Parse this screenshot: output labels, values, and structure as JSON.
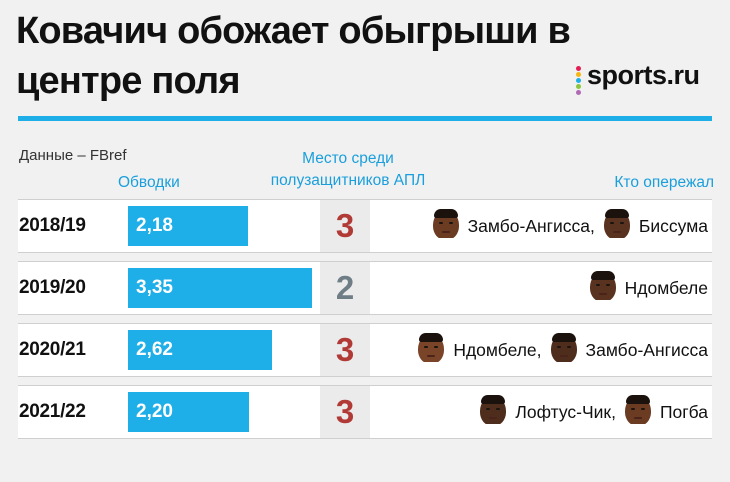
{
  "title": "Ковачич обожает обыгрыши в центре поля",
  "brand": {
    "name": "sports.ru",
    "dot_colors": [
      "#e41e54",
      "#f6b511",
      "#1eaee8",
      "#8bc53f",
      "#b06ab3"
    ]
  },
  "source": "Данные – FBref",
  "columns": {
    "dribbles": "Обводки",
    "rank": "Место среди полузащитников АПЛ",
    "who": "Кто опережал"
  },
  "colors": {
    "accent": "#1eaee8",
    "rank_red": "#b13a36",
    "rank_grey": "#6f7d86"
  },
  "chart_data": {
    "type": "bar",
    "orientation": "horizontal",
    "categories": [
      "2018/19",
      "2019/20",
      "2020/21",
      "2021/22"
    ],
    "values": [
      2.18,
      3.35,
      2.62,
      2.2
    ],
    "value_labels": [
      "2,18",
      "3,35",
      "2,62",
      "2,20"
    ],
    "title": "Ковачич обожает обыгрыши в центре поля",
    "ylabel": "Обводки",
    "xlim": [
      0,
      3.35
    ]
  },
  "rows": [
    {
      "season": "2018/19",
      "label": "2,18",
      "rank": "3",
      "rank_color": "red",
      "players": [
        {
          "name": "Замбо-Ангисса",
          "icon": "player-face-icon",
          "sep": ","
        },
        {
          "name": "Биссума",
          "icon": "player-face-icon",
          "sep": ""
        }
      ]
    },
    {
      "season": "2019/20",
      "label": "3,35",
      "rank": "2",
      "rank_color": "grey",
      "players": [
        {
          "name": "Ндомбеле",
          "icon": "player-face-icon",
          "sep": ""
        }
      ]
    },
    {
      "season": "2020/21",
      "label": "2,62",
      "rank": "3",
      "rank_color": "red",
      "players": [
        {
          "name": "Ндомбеле",
          "icon": "player-face-icon",
          "sep": ","
        },
        {
          "name": "Замбо-Ангисса",
          "icon": "player-face-icon",
          "sep": ""
        }
      ]
    },
    {
      "season": "2021/22",
      "label": "2,20",
      "rank": "3",
      "rank_color": "red",
      "players": [
        {
          "name": "Лофтус-Чик",
          "icon": "player-face-icon",
          "sep": ","
        },
        {
          "name": "Погба",
          "icon": "player-face-icon",
          "sep": ""
        }
      ]
    }
  ]
}
